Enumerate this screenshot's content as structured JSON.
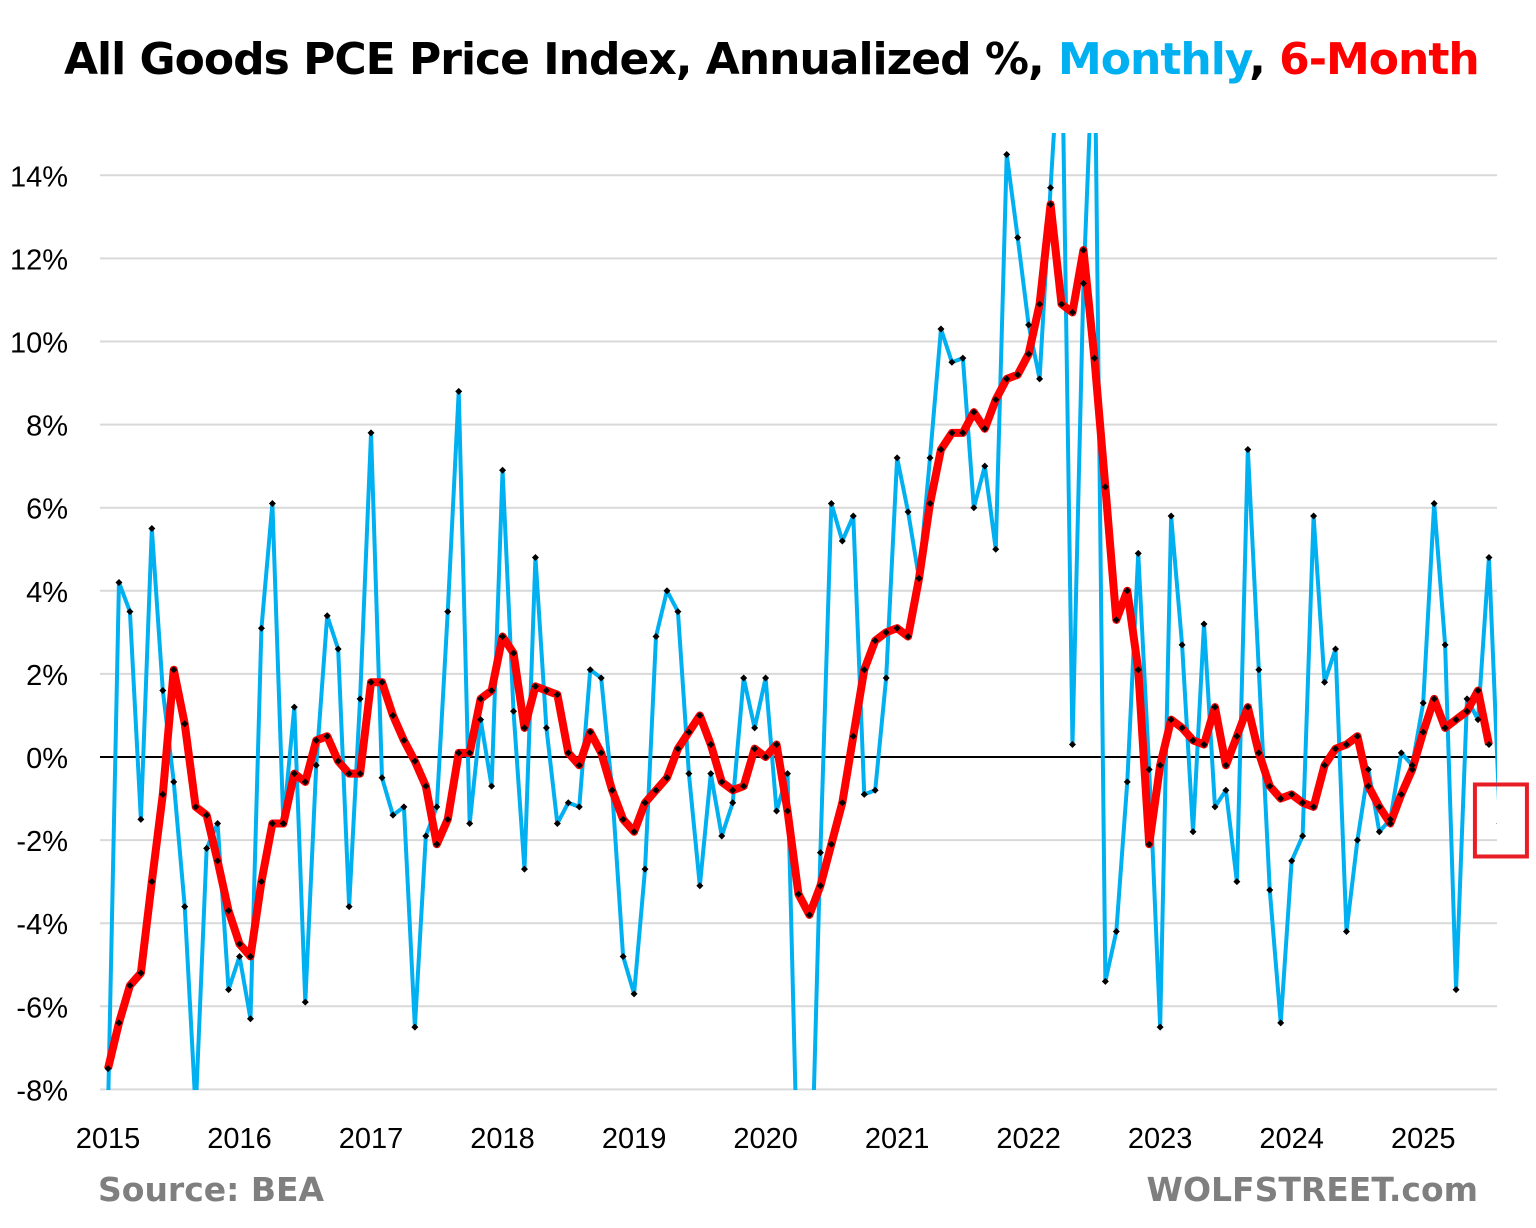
{
  "chart_data": {
    "type": "line",
    "title_parts": [
      {
        "text": "All Goods PCE Price Index, Annualized %, ",
        "color": "#000000"
      },
      {
        "text": "Monthly",
        "color": "#00b0f0"
      },
      {
        "text": ", ",
        "color": "#000000"
      },
      {
        "text": "6-Month",
        "color": "#ff0000"
      }
    ],
    "ylim": [
      -8,
      15
    ],
    "yticks": [
      -8,
      -6,
      -4,
      -2,
      0,
      2,
      4,
      6,
      8,
      10,
      12,
      14
    ],
    "ytick_format": "percent",
    "xticks": [
      "2015",
      "2016",
      "2017",
      "2018",
      "2019",
      "2020",
      "2021",
      "2022",
      "2023",
      "2024",
      "2025"
    ],
    "x_start": "2015-01",
    "x_frequency": "monthly",
    "grid": true,
    "series": [
      {
        "name": "Monthly",
        "color": "#00b0f0",
        "values": [
          -8.5,
          4.2,
          3.5,
          -1.5,
          5.5,
          1.6,
          -0.6,
          -3.6,
          -8.5,
          -2.2,
          -1.6,
          -5.6,
          -4.8,
          -6.3,
          3.1,
          6.1,
          -1.6,
          1.2,
          -5.9,
          -0.2,
          3.4,
          2.6,
          -3.6,
          1.4,
          7.8,
          -0.5,
          -1.4,
          -1.2,
          -6.5,
          -1.9,
          -1.2,
          3.5,
          8.8,
          -1.6,
          0.9,
          -0.7,
          6.9,
          1.1,
          -2.7,
          4.8,
          0.7,
          -1.6,
          -1.1,
          -1.2,
          2.1,
          1.9,
          -0.8,
          -4.8,
          -5.7,
          -2.7,
          2.9,
          4.0,
          3.5,
          -0.4,
          -3.1,
          -0.4,
          -1.9,
          -1.1,
          1.9,
          0.7,
          1.9,
          -1.3,
          -0.4,
          -11,
          -12,
          -2.3,
          6.1,
          5.2,
          5.8,
          -0.9,
          -0.8,
          1.9,
          7.2,
          5.9,
          4.3,
          7.2,
          10.3,
          9.5,
          9.6,
          6.0,
          7.0,
          5.0,
          14.5,
          12.5,
          10.4,
          9.1,
          13.7,
          18,
          0.3,
          11.4,
          18,
          -5.4,
          -4.2,
          -0.6,
          4.9,
          -0.3,
          -6.5,
          5.8,
          2.7,
          -1.8,
          3.2,
          -1.2,
          -0.8,
          -3.0,
          7.4,
          2.1,
          -3.2,
          -6.4,
          -2.5,
          -1.9,
          5.8,
          1.8,
          2.6,
          -4.2,
          -2.0,
          -0.3,
          -1.8,
          -1.5,
          0.1,
          -0.2,
          1.3,
          6.1,
          2.7,
          -5.6,
          1.4,
          0.9,
          4.8,
          -1.6
        ]
      },
      {
        "name": "6-Month",
        "color": "#ff0000",
        "values": [
          -7.5,
          -6.4,
          -5.5,
          -5.2,
          -3.0,
          -0.9,
          2.1,
          0.8,
          -1.2,
          -1.4,
          -2.5,
          -3.7,
          -4.5,
          -4.8,
          -3.0,
          -1.6,
          -1.6,
          -0.4,
          -0.6,
          0.4,
          0.5,
          -0.1,
          -0.4,
          -0.4,
          1.8,
          1.8,
          1.0,
          0.4,
          -0.1,
          -0.7,
          -2.1,
          -1.5,
          0.1,
          0.1,
          1.4,
          1.6,
          2.9,
          2.5,
          0.7,
          1.7,
          1.6,
          1.5,
          0.1,
          -0.2,
          0.6,
          0.1,
          -0.8,
          -1.5,
          -1.8,
          -1.1,
          -0.8,
          -0.5,
          0.2,
          0.6,
          1.0,
          0.3,
          -0.6,
          -0.8,
          -0.7,
          0.2,
          0.0,
          0.3,
          -1.3,
          -3.3,
          -3.8,
          -3.1,
          -2.1,
          -1.1,
          0.5,
          2.1,
          2.8,
          3.0,
          3.1,
          2.9,
          4.3,
          6.1,
          7.4,
          7.8,
          7.8,
          8.3,
          7.9,
          8.6,
          9.1,
          9.2,
          9.7,
          10.9,
          13.3,
          10.9,
          10.7,
          12.2,
          9.6,
          6.5,
          3.3,
          4.0,
          2.1,
          -2.1,
          -0.2,
          0.9,
          0.7,
          0.4,
          0.3,
          1.2,
          -0.2,
          0.5,
          1.2,
          0.1,
          -0.7,
          -1.0,
          -0.9,
          -1.1,
          -1.2,
          -0.2,
          0.2,
          0.3,
          0.5,
          -0.7,
          -1.2,
          -1.6,
          -0.9,
          -0.3,
          0.6,
          1.4,
          0.7,
          0.9,
          1.1,
          1.6,
          0.3
        ]
      }
    ]
  },
  "footer": {
    "source": "Source: BEA",
    "brand": "WOLFSTREET.com"
  }
}
